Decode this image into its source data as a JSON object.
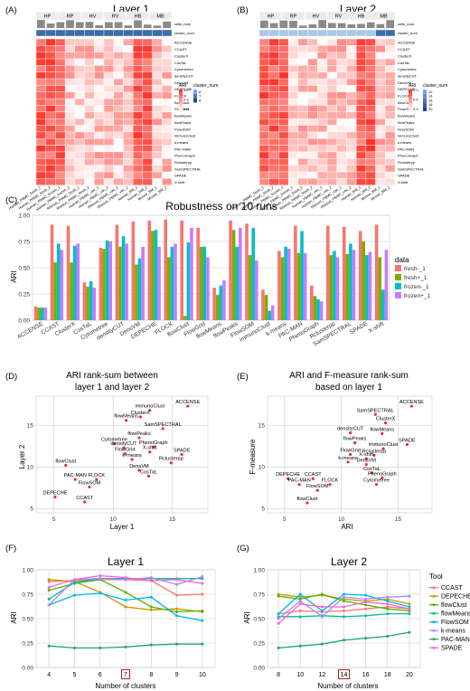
{
  "panel_labels": [
    "(A)",
    "(B)",
    "(C)",
    "(D)",
    "(E)",
    "(F)",
    "(G)"
  ],
  "chart_data": [
    {
      "id": "A",
      "type": "heatmap",
      "title": "Layer 1",
      "groups": [
        "HP",
        "RP",
        "HV",
        "RV",
        "HB",
        "MB"
      ],
      "annotation_rows": [
        "cells_num",
        "cluster_num"
      ],
      "rows": [
        "ACCENSE",
        "CCAST",
        "ClusterX",
        "CosTaL",
        "Cytometree",
        "densityCUT",
        "DensVM",
        "DEPECHE",
        "FLOCK",
        "flowClust",
        "FlowGrid",
        "flowMeans",
        "flowPeaks",
        "FlowSOM",
        "immunoClust",
        "k-means",
        "PAC-MAN",
        "PhenoGraph",
        "Rclusterpp",
        "SamSPECTRAL",
        "SPADE",
        "X-shift"
      ],
      "col_labels": [
        "Human_PBMC_fresh_1",
        "Human_PBMC_fresh_2",
        "Human_PBMC_frozen_1",
        "Human_PBMC_frozen_2",
        "Rhesus_PBMC_fresh_1",
        "Rhesus_PBMC_fresh_2",
        "Human_PBMC_vac_1",
        "Human_PBMC_vac_2",
        "Rhesus_PBMC_vac_1",
        "Rhesus_PBMC_vac_2",
        "Human_BM_1",
        "Human_BM_2",
        "Mouse_BM_1",
        "Mouse_BM_2"
      ],
      "legend_ari_title": "ARI",
      "legend_ari_ticks": [
        "1.0",
        "0.5",
        "0.0"
      ],
      "legend_cluster_title": "cluster_num",
      "legend_cluster_ticks": [
        "6",
        "7",
        "8"
      ]
    },
    {
      "id": "B",
      "type": "heatmap",
      "title": "Layer 2",
      "groups": [
        "HP",
        "RP",
        "HV",
        "RV",
        "HB",
        "MB"
      ],
      "annotation_rows": [
        "cells_num",
        "cluster_num"
      ],
      "rows": [
        "ACCENSE",
        "CCAST",
        "ClusterX",
        "CosTaL",
        "Cytometree",
        "densityCUT",
        "DensVM",
        "DEPECHE",
        "FLOCK",
        "flowClust",
        "FlowGrid",
        "flowMeans",
        "flowPeaks",
        "FlowSOM",
        "immunoClust",
        "k-means",
        "PAC-MAN",
        "PhenoGraph",
        "Rclusterpp",
        "SamSPECTRAL",
        "SPADE",
        "X-shift"
      ],
      "col_labels": [
        "Human_PBMC_fresh_1",
        "Human_PBMC_fresh_2",
        "Human_PBMC_frozen_1",
        "Human_PBMC_frozen_2",
        "Rhesus_PBMC_fresh_1",
        "Rhesus_PBMC_fresh_2",
        "Human_PBMC_vac_1",
        "Human_PBMC_vac_2",
        "Rhesus_PBMC_vac_1",
        "Rhesus_PBMC_vac_2",
        "Human_BM_1",
        "Human_BM_2",
        "Mouse_BM_1",
        "Mouse_BM_2"
      ],
      "legend_ari_title": "ARI",
      "legend_ari_ticks": [
        "1.0",
        "0.5",
        "0.0"
      ],
      "legend_cluster_title": "cluster_num",
      "legend_cluster_ticks": [
        "12",
        "14",
        "16",
        "18",
        "20"
      ]
    },
    {
      "id": "C",
      "type": "bar",
      "title": "Robustness on 10 runs",
      "ylabel": "ARI",
      "xlabel": "",
      "ylim": [
        0,
        1
      ],
      "yticks": [
        "0.00",
        "0.25",
        "0.50",
        "0.75",
        "1.00"
      ],
      "legend_title": "data",
      "legend_position": "right",
      "categories": [
        "ACCENSE",
        "CCAST",
        "ClusterX",
        "CosTaL",
        "Cytometree",
        "densityCUT",
        "DensVM",
        "DEPECHE",
        "FLOCK",
        "flowClust",
        "FlowGrid",
        "flowMeans",
        "flowPeaks",
        "FlowSOM",
        "immunoClust",
        "k-means",
        "PAC-MAN",
        "PhenoGraph",
        "Rclusterpp",
        "SamSPECTRAL",
        "SPADE",
        "X-shift"
      ],
      "series": [
        {
          "name": "fresh-_1",
          "color": "#F8766D",
          "values": [
            0.13,
            0.91,
            0.9,
            0.36,
            0.69,
            0.91,
            0.94,
            0.95,
            0.96,
            0.95,
            0.88,
            0.31,
            0.95,
            0.92,
            0.29,
            0.66,
            0.9,
            0.33,
            0.9,
            0.89,
            0.85,
            0.91
          ]
        },
        {
          "name": "fresh+_1",
          "color": "#7CAE00",
          "values": [
            0.12,
            0.55,
            0.55,
            0.32,
            0.68,
            0.7,
            0.53,
            0.85,
            0.6,
            0.04,
            0.7,
            0.24,
            0.86,
            0.62,
            0.24,
            0.6,
            0.64,
            0.23,
            0.62,
            0.63,
            0.75,
            0.6
          ]
        },
        {
          "name": "frozen-_1",
          "color": "#00BFC4",
          "values": [
            0.12,
            0.73,
            0.71,
            0.37,
            0.76,
            0.8,
            0.59,
            0.86,
            0.7,
            0.74,
            0.7,
            0.33,
            0.7,
            0.88,
            0.09,
            0.7,
            0.85,
            0.2,
            0.66,
            0.73,
            0.62,
            0.29
          ]
        },
        {
          "name": "frozen+_1",
          "color": "#C77CFF",
          "values": [
            0.12,
            0.67,
            0.73,
            0.31,
            0.75,
            0.73,
            0.7,
            0.7,
            0.73,
            0.88,
            0.6,
            0.38,
            0.88,
            0.57,
            0.14,
            0.68,
            0.64,
            0.18,
            0.6,
            0.67,
            0.65,
            0.67
          ]
        }
      ]
    },
    {
      "id": "D",
      "type": "scatter",
      "title": "ARI rank-sum between layer 1 and layer 2",
      "title_lines": [
        "ARI rank-sum between",
        "layer 1 and layer 2"
      ],
      "xlabel": "Layer 1",
      "ylabel": "Layer 2",
      "xlim": [
        3.5,
        18
      ],
      "ylim": [
        4.5,
        18.5
      ],
      "xticks": [
        5,
        10,
        15
      ],
      "yticks": [
        5,
        10,
        15
      ],
      "points": [
        {
          "label": "ACCENSE",
          "x": 16.3,
          "y": 17.3
        },
        {
          "label": "immunoClust",
          "x": 13.1,
          "y": 16.8
        },
        {
          "label": "ClusterX",
          "x": 12.3,
          "y": 16.0
        },
        {
          "label": "flowMeans",
          "x": 11.1,
          "y": 15.6
        },
        {
          "label": "SamSPECTRAL",
          "x": 14.2,
          "y": 14.6
        },
        {
          "label": "flowPeaks",
          "x": 12.2,
          "y": 13.5
        },
        {
          "label": "Cytometree",
          "x": 10.1,
          "y": 12.8
        },
        {
          "label": "densityCUT",
          "x": 10.9,
          "y": 12.3
        },
        {
          "label": "PhenoGraph",
          "x": 13.4,
          "y": 12.4
        },
        {
          "label": "X-shift",
          "x": 13.1,
          "y": 11.8
        },
        {
          "label": "FlowGrid",
          "x": 11.0,
          "y": 11.6
        },
        {
          "label": "SPADE",
          "x": 15.8,
          "y": 11.5
        },
        {
          "label": "k-means",
          "x": 11.6,
          "y": 10.9
        },
        {
          "label": "Rclusterpp",
          "x": 14.9,
          "y": 10.5
        },
        {
          "label": "flowClust",
          "x": 6.0,
          "y": 10.2
        },
        {
          "label": "DensVM",
          "x": 12.2,
          "y": 9.6
        },
        {
          "label": "CosTaL",
          "x": 13.0,
          "y": 8.9
        },
        {
          "label": "PAC-MAN",
          "x": 6.8,
          "y": 8.5
        },
        {
          "label": "FLOCK",
          "x": 8.6,
          "y": 8.5
        },
        {
          "label": "FlowSOM",
          "x": 8.0,
          "y": 7.6
        },
        {
          "label": "DEPECHE",
          "x": 5.1,
          "y": 6.4
        },
        {
          "label": "CCAST",
          "x": 7.6,
          "y": 5.8
        }
      ]
    },
    {
      "id": "E",
      "type": "scatter",
      "title": "ARI and F-measure rank-sum based on layer 1",
      "title_lines": [
        "ARI and F-measure rank-sum",
        "based on layer 1"
      ],
      "xlabel": "ARI",
      "ylabel": "F-measure",
      "xlim": [
        3.5,
        18
      ],
      "ylim": [
        4.5,
        18.5
      ],
      "xticks": [
        5,
        10,
        15
      ],
      "yticks": [
        5,
        10,
        15
      ],
      "points": [
        {
          "label": "ACCENSE",
          "x": 16.2,
          "y": 17.3
        },
        {
          "label": "SamSPECTRAL",
          "x": 13.0,
          "y": 16.3
        },
        {
          "label": "ClusterX",
          "x": 13.9,
          "y": 15.3
        },
        {
          "label": "densityCUT",
          "x": 10.8,
          "y": 14.1
        },
        {
          "label": "flowMeans",
          "x": 13.6,
          "y": 14.0
        },
        {
          "label": "flowPeaks",
          "x": 11.2,
          "y": 12.9
        },
        {
          "label": "SPADE",
          "x": 15.8,
          "y": 12.7
        },
        {
          "label": "immunoClust",
          "x": 13.7,
          "y": 12.2
        },
        {
          "label": "FlowGrid",
          "x": 10.8,
          "y": 11.5
        },
        {
          "label": "Rclusterpp",
          "x": 12.9,
          "y": 11.4
        },
        {
          "label": "X-shift",
          "x": 12.2,
          "y": 11.0
        },
        {
          "label": "k-means",
          "x": 10.6,
          "y": 10.6
        },
        {
          "label": "DensVM",
          "x": 12.2,
          "y": 10.3
        },
        {
          "label": "CosTaL",
          "x": 12.7,
          "y": 9.3
        },
        {
          "label": "PhenoGraph",
          "x": 13.6,
          "y": 8.7
        },
        {
          "label": "DEPECHE",
          "x": 5.3,
          "y": 8.6
        },
        {
          "label": "CCAST",
          "x": 7.5,
          "y": 8.6
        },
        {
          "label": "PAC-MAN",
          "x": 6.3,
          "y": 7.9
        },
        {
          "label": "FLOCK",
          "x": 9.0,
          "y": 7.9
        },
        {
          "label": "Cytometree",
          "x": 13.1,
          "y": 7.9
        },
        {
          "label": "FlowSOM",
          "x": 7.9,
          "y": 7.2
        },
        {
          "label": "flowClust",
          "x": 7.0,
          "y": 5.7
        }
      ]
    },
    {
      "id": "F",
      "type": "line",
      "title": "Layer 1",
      "xlabel": "Number of clusters",
      "ylabel": "ARI",
      "x": [
        4,
        5,
        6,
        7,
        8,
        9,
        10
      ],
      "highlight_x": "7",
      "ylim": [
        0,
        1.0
      ],
      "yticks": [
        "0.00",
        "0.25",
        "0.50",
        "0.75",
        "1.00"
      ],
      "legend_title": "Tool",
      "legend_position": "right",
      "series": [
        {
          "name": "CCAST",
          "color": "#F8766D",
          "values": [
            0.88,
            0.89,
            0.9,
            0.9,
            0.89,
            0.74,
            0.75
          ]
        },
        {
          "name": "DEPECHE",
          "color": "#C49A00",
          "values": [
            0.9,
            0.88,
            0.77,
            0.62,
            0.59,
            0.6,
            0.57
          ]
        },
        {
          "name": "flowClust",
          "color": "#53B400",
          "values": [
            0.79,
            0.86,
            0.9,
            0.77,
            0.62,
            0.57,
            0.58
          ]
        },
        {
          "name": "flowMeans",
          "color": "#00C094",
          "values": [
            0.7,
            0.87,
            0.91,
            0.91,
            0.91,
            0.91,
            0.91
          ]
        },
        {
          "name": "FlowSOM",
          "color": "#00B6EB",
          "values": [
            0.64,
            0.74,
            0.76,
            0.69,
            0.72,
            0.53,
            0.48
          ]
        },
        {
          "name": "k-means",
          "color": "#A58AFF",
          "values": [
            0.64,
            0.9,
            0.91,
            0.9,
            0.92,
            0.85,
            0.93
          ]
        },
        {
          "name": "PAC-MAN",
          "color": "#1FA561",
          "values": [
            0.22,
            0.2,
            0.2,
            0.21,
            0.23,
            0.24,
            0.24
          ]
        },
        {
          "name": "SPADE",
          "color": "#FB61D7",
          "values": [
            0.82,
            0.9,
            0.94,
            0.92,
            0.89,
            0.9,
            0.86
          ]
        }
      ]
    },
    {
      "id": "G",
      "type": "line",
      "title": "Layer 2",
      "xlabel": "Number of clusters",
      "ylabel": "ARI",
      "x": [
        8,
        10,
        12,
        14,
        16,
        18,
        20
      ],
      "highlight_x": "14",
      "ylim": [
        0,
        1.0
      ],
      "yticks": [
        "0.00",
        "0.25",
        "0.50",
        "0.75",
        "1.00"
      ],
      "series": [
        {
          "name": "CCAST",
          "color": "#F8766D",
          "values": [
            0.55,
            0.58,
            0.57,
            0.58,
            0.6,
            0.62,
            0.6
          ]
        },
        {
          "name": "DEPECHE",
          "color": "#C49A00",
          "values": [
            0.75,
            0.72,
            0.74,
            0.7,
            0.68,
            0.7,
            0.65
          ]
        },
        {
          "name": "flowClust",
          "color": "#53B400",
          "values": [
            0.73,
            0.7,
            0.75,
            0.68,
            0.64,
            0.6,
            0.58
          ]
        },
        {
          "name": "flowMeans",
          "color": "#00C094",
          "values": [
            0.52,
            0.52,
            0.53,
            0.52,
            0.53,
            0.55,
            0.55
          ]
        },
        {
          "name": "FlowSOM",
          "color": "#00B6EB",
          "values": [
            0.55,
            0.75,
            0.58,
            0.75,
            0.74,
            0.68,
            0.62
          ]
        },
        {
          "name": "k-means",
          "color": "#A58AFF",
          "values": [
            0.5,
            0.68,
            0.52,
            0.72,
            0.7,
            0.72,
            0.73
          ]
        },
        {
          "name": "PAC-MAN",
          "color": "#1FA561",
          "values": [
            0.2,
            0.22,
            0.24,
            0.28,
            0.3,
            0.32,
            0.36
          ]
        },
        {
          "name": "SPADE",
          "color": "#FB61D7",
          "values": [
            0.45,
            0.65,
            0.62,
            0.62,
            0.67,
            0.65,
            0.6
          ]
        }
      ]
    }
  ]
}
